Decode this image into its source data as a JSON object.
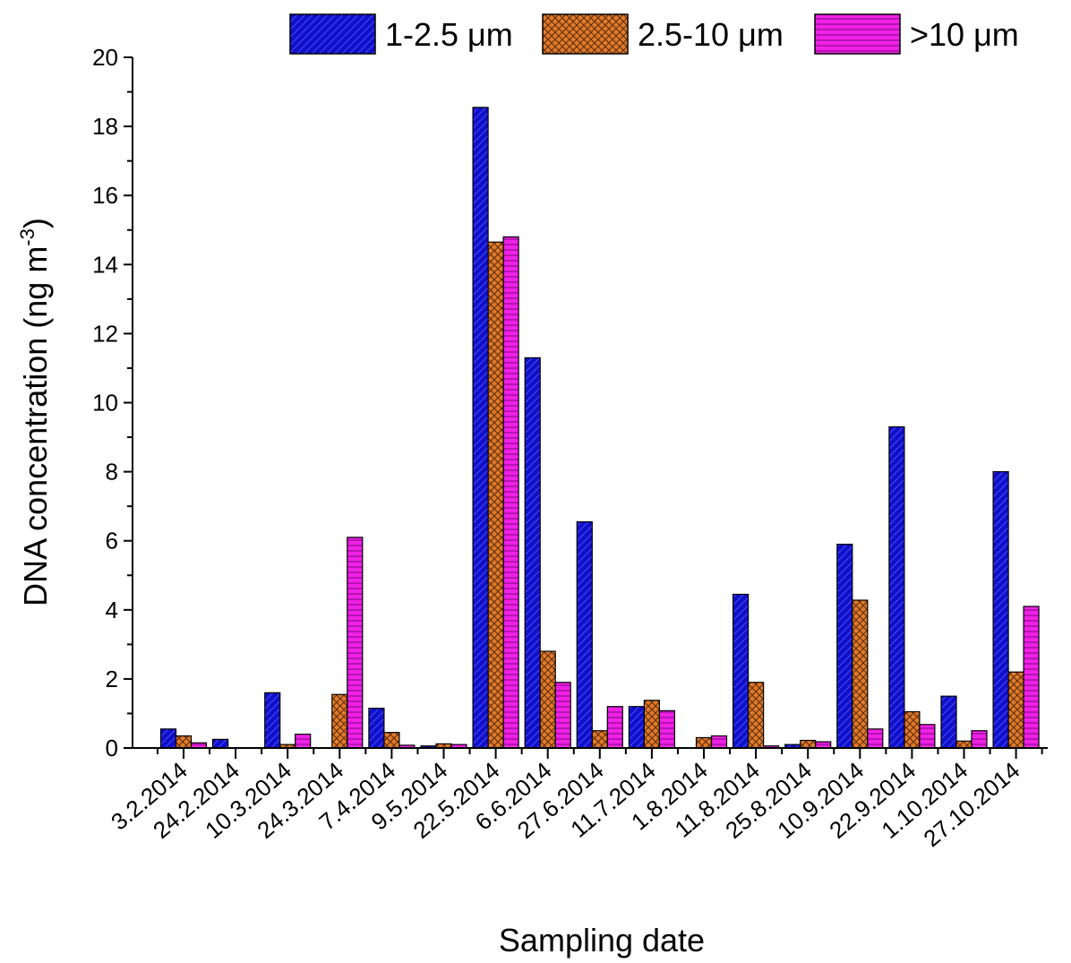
{
  "chart_data": {
    "type": "bar",
    "xlabel": "Sampling date",
    "ylabel": "DNA concentration (ng m",
    "ylabel_superscript": "-3",
    "ylabel_suffix": ")",
    "ylim": [
      0,
      20
    ],
    "yticks": [
      0,
      2,
      4,
      6,
      8,
      10,
      12,
      14,
      16,
      18,
      20
    ],
    "grid": false,
    "legend_position": "top-right",
    "categories": [
      "3.2.2014",
      "24.2.2014",
      "10.3.2014",
      "24.3.2014",
      "7.4.2014",
      "9.5.2014",
      "22.5.2014",
      "6.6.2014",
      "27.6.2014",
      "11.7.2014",
      "1.8.2014",
      "11.8.2014",
      "25.8.2014",
      "10.9.2014",
      "22.9.2014",
      "1.10.2014",
      "27.10.2014"
    ],
    "series": [
      {
        "name": "1-2.5 μm",
        "color": "#1010c8",
        "pattern": "diagonal",
        "values": [
          0.55,
          0.25,
          1.6,
          0,
          1.15,
          0.06,
          18.55,
          11.3,
          6.55,
          1.2,
          0,
          4.45,
          0.1,
          5.9,
          9.3,
          1.5,
          8.0
        ]
      },
      {
        "name": "2.5-10 μm",
        "color": "#e07a2a",
        "pattern": "crosshatch",
        "values": [
          0.35,
          0,
          0.1,
          1.55,
          0.45,
          0.12,
          14.65,
          2.8,
          0.5,
          1.38,
          0.3,
          1.9,
          0.22,
          4.28,
          1.05,
          0.2,
          2.2
        ]
      },
      {
        "name": ">10 μm",
        "color": "#f020e8",
        "pattern": "horizontal",
        "values": [
          0.15,
          0,
          0.4,
          6.1,
          0.08,
          0.1,
          14.8,
          1.9,
          1.2,
          1.08,
          0.35,
          0.06,
          0.18,
          0.55,
          0.68,
          0.5,
          4.1
        ]
      }
    ]
  }
}
